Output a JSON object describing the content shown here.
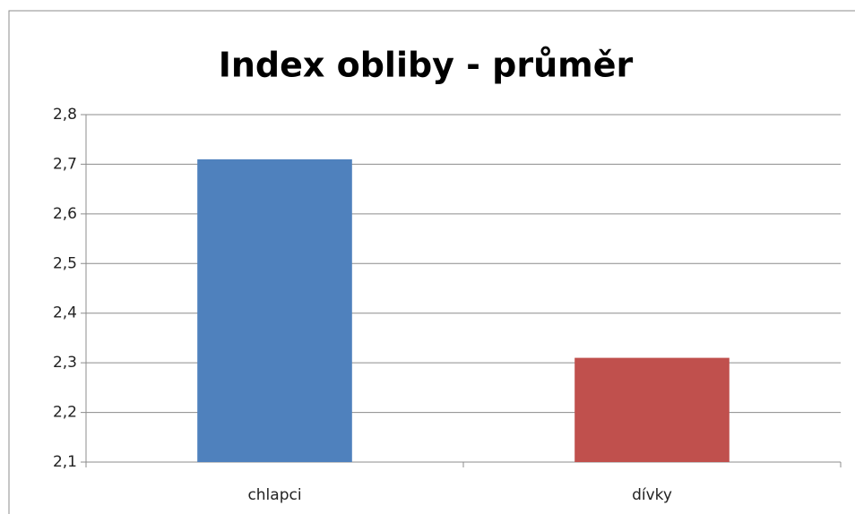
{
  "chart_data": {
    "type": "bar",
    "title": "Index obliby - průměr",
    "categories": [
      "chlapci",
      "dívky"
    ],
    "values": [
      2.71,
      2.31
    ],
    "colors": [
      "#4f81bd",
      "#c0504d"
    ],
    "ylim": [
      2.1,
      2.8
    ],
    "yticks": [
      {
        "value": 2.1,
        "label": "2,1"
      },
      {
        "value": 2.2,
        "label": "2,2"
      },
      {
        "value": 2.3,
        "label": "2,3"
      },
      {
        "value": 2.4,
        "label": "2,4"
      },
      {
        "value": 2.5,
        "label": "2,5"
      },
      {
        "value": 2.6,
        "label": "2,6"
      },
      {
        "value": 2.7,
        "label": "2,7"
      },
      {
        "value": 2.8,
        "label": "2,8"
      }
    ],
    "grid": true
  }
}
